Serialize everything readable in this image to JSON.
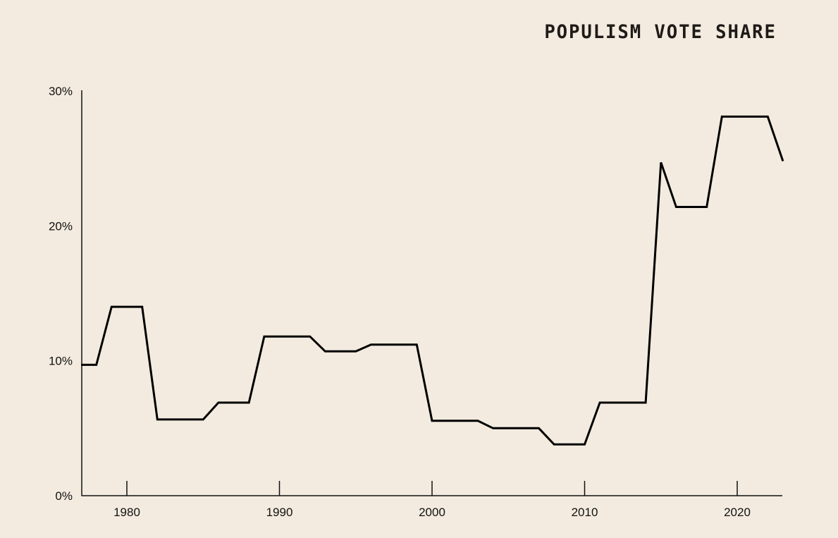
{
  "chart_data": {
    "type": "line",
    "title": "POPULISM VOTE SHARE",
    "xlabel": "",
    "ylabel": "",
    "xlim": [
      1977,
      2023
    ],
    "ylim": [
      0,
      30
    ],
    "x_ticks": [
      1980,
      1990,
      2000,
      2010,
      2020
    ],
    "x_tick_labels": [
      "1980",
      "1990",
      "2000",
      "2010",
      "2020"
    ],
    "y_ticks": [
      0,
      10,
      20,
      30
    ],
    "y_tick_labels": [
      "0%",
      "10%",
      "20%",
      "30%"
    ],
    "grid": false,
    "line_color": "#000000",
    "background": "#f3ebdf",
    "series": [
      {
        "x": [
          1977,
          1978,
          1979,
          1981,
          1982,
          1985,
          1986,
          1988,
          1989,
          1992,
          1993,
          1995,
          1996,
          1999,
          2000,
          2003,
          2004,
          2007,
          2008,
          2010,
          2011,
          2014,
          2015,
          2016,
          2018,
          2019,
          2022,
          2023
        ],
        "y": [
          9.7,
          9.7,
          14.0,
          14.0,
          5.65,
          5.65,
          6.9,
          6.9,
          11.8,
          11.8,
          10.7,
          10.7,
          11.2,
          11.2,
          5.55,
          5.55,
          5.0,
          5.0,
          3.8,
          3.8,
          6.9,
          6.9,
          24.7,
          21.4,
          21.4,
          28.1,
          28.1,
          24.8
        ]
      }
    ]
  }
}
